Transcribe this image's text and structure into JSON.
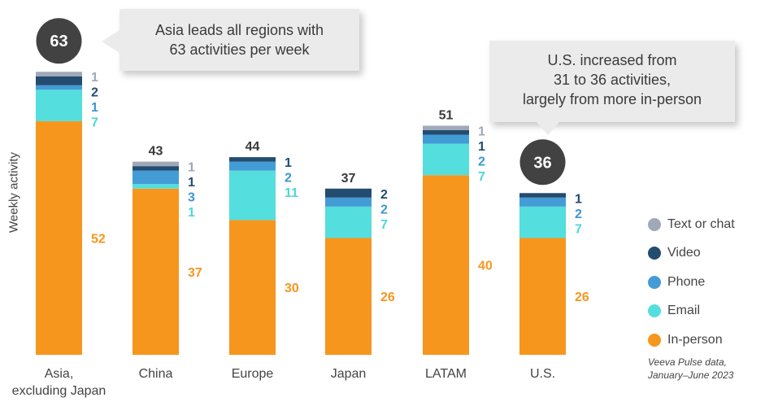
{
  "chart_data": {
    "type": "bar",
    "stacked": true,
    "title": "",
    "xlabel": "",
    "ylabel": "Weekly activity",
    "ylim": [
      0,
      65
    ],
    "grid": false,
    "categories": [
      "Asia,\nexcluding Japan",
      "China",
      "Europe",
      "Japan",
      "LATAM",
      "U.S."
    ],
    "totals": [
      63,
      43,
      44,
      37,
      51,
      36
    ],
    "series": [
      {
        "name": "In-person",
        "color": "#F7961D",
        "values": [
          52,
          37,
          30,
          26,
          40,
          26
        ]
      },
      {
        "name": "Email",
        "color": "#54DEDD",
        "values": [
          7,
          1,
          11,
          7,
          7,
          7
        ]
      },
      {
        "name": "Phone",
        "color": "#449CD6",
        "values": [
          1,
          3,
          2,
          2,
          2,
          2
        ]
      },
      {
        "name": "Video",
        "color": "#234C70",
        "values": [
          2,
          1,
          1,
          2,
          1,
          1
        ]
      },
      {
        "name": "Text or chat",
        "color": "#A0A9B8",
        "values": [
          1,
          1,
          0,
          0,
          1,
          0
        ]
      }
    ],
    "legend_order": [
      "Text or chat",
      "Video",
      "Phone",
      "Email",
      "In-person"
    ],
    "legend_position": "right",
    "highlighted_totals": [
      0,
      5
    ],
    "annotations": [
      {
        "target": "Asia,\nexcluding Japan",
        "lines": [
          "Asia leads all regions with",
          "63 activities per week"
        ]
      },
      {
        "target": "U.S.",
        "lines": [
          "U.S. increased from",
          "31 to 36 activities,",
          "largely from more in-person"
        ]
      }
    ],
    "source": [
      "Veeva Pulse data,",
      "January–June 2023"
    ]
  }
}
